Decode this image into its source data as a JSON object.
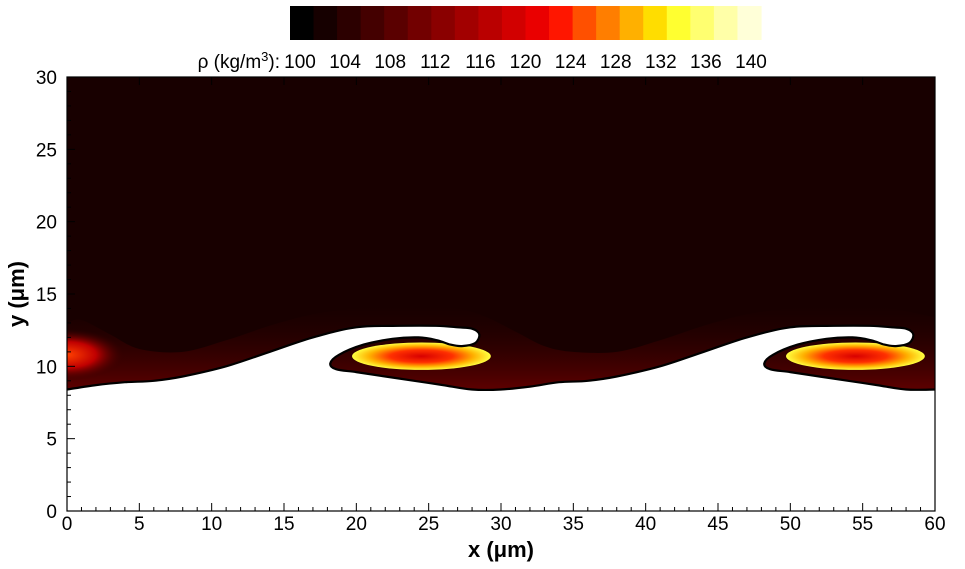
{
  "chart_data": {
    "type": "heatmap",
    "title": "",
    "xlabel": "x (μm)",
    "ylabel": "y (μm)",
    "xlim": [
      0,
      60
    ],
    "ylim": [
      0,
      30
    ],
    "x_ticks": [
      0,
      5,
      10,
      15,
      20,
      25,
      30,
      35,
      40,
      45,
      50,
      55,
      60
    ],
    "y_ticks": [
      0,
      5,
      10,
      15,
      20,
      25,
      30
    ],
    "grid": false,
    "colorbar": {
      "label_prefix": "ρ (kg/m",
      "label_sup": "3",
      "label_suffix": "):",
      "placement": "top",
      "range": [
        100,
        140
      ],
      "labels": [
        100,
        104,
        108,
        112,
        116,
        120,
        124,
        128,
        132,
        136,
        140
      ],
      "colors": [
        "#000000",
        "#160000",
        "#2c0000",
        "#440000",
        "#5a0000",
        "#720000",
        "#8a0000",
        "#a20000",
        "#ba0000",
        "#d20000",
        "#ea0000",
        "#ff1600",
        "#ff5000",
        "#ff7e00",
        "#ffb000",
        "#ffdd00",
        "#ffff30",
        "#ffff70",
        "#ffffa8",
        "#ffffd8"
      ]
    },
    "background_field_color": "#180000",
    "interface_curve": [
      [
        0,
        8.4
      ],
      [
        2,
        8.7
      ],
      [
        4,
        8.9
      ],
      [
        6,
        9.0
      ],
      [
        8,
        9.3
      ],
      [
        11,
        10.0
      ],
      [
        14,
        11.0
      ],
      [
        17,
        12.0
      ],
      [
        20,
        12.7
      ],
      [
        23,
        12.8
      ],
      [
        25.5,
        12.8
      ],
      [
        27,
        12.7
      ],
      [
        28,
        12.6
      ],
      [
        28.5,
        12.2
      ],
      [
        28.2,
        11.6
      ],
      [
        27.3,
        11.4
      ],
      [
        26.5,
        11.5
      ],
      [
        25.6,
        11.8
      ],
      [
        24.3,
        12.0
      ],
      [
        22.5,
        11.9
      ],
      [
        20.5,
        11.5
      ],
      [
        18.8,
        10.8
      ],
      [
        18.2,
        10.2
      ],
      [
        18.6,
        9.8
      ],
      [
        20,
        9.6
      ],
      [
        22,
        9.3
      ],
      [
        24,
        9.0
      ],
      [
        26,
        8.7
      ],
      [
        28,
        8.4
      ],
      [
        30,
        8.4
      ],
      [
        32,
        8.6
      ],
      [
        34,
        8.9
      ],
      [
        36,
        9.0
      ],
      [
        38,
        9.3
      ],
      [
        41,
        10.0
      ],
      [
        44,
        11.0
      ],
      [
        47,
        12.0
      ],
      [
        50,
        12.7
      ],
      [
        53,
        12.8
      ],
      [
        55.5,
        12.8
      ],
      [
        57,
        12.7
      ],
      [
        58,
        12.6
      ],
      [
        58.5,
        12.2
      ],
      [
        58.2,
        11.6
      ],
      [
        57.3,
        11.4
      ],
      [
        56.5,
        11.5
      ],
      [
        55.6,
        11.8
      ],
      [
        54.3,
        12.0
      ],
      [
        52.5,
        11.9
      ],
      [
        50.5,
        11.5
      ],
      [
        48.8,
        10.8
      ],
      [
        48.2,
        10.2
      ],
      [
        48.6,
        9.8
      ],
      [
        50,
        9.6
      ],
      [
        52,
        9.3
      ],
      [
        54,
        9.0
      ],
      [
        56,
        8.7
      ],
      [
        58,
        8.4
      ],
      [
        60,
        8.4
      ]
    ],
    "mixing_layer_profile": [
      [
        0,
        13.0
      ],
      [
        1,
        13.2
      ],
      [
        3,
        12.2
      ],
      [
        5,
        11.2
      ],
      [
        8,
        11.0
      ],
      [
        11,
        11.8
      ],
      [
        14,
        12.8
      ],
      [
        17,
        13.6
      ],
      [
        20,
        14.0
      ],
      [
        24,
        14.2
      ],
      [
        27,
        14.0
      ],
      [
        29,
        13.4
      ],
      [
        31,
        12.4
      ],
      [
        33,
        11.4
      ],
      [
        35,
        11.0
      ],
      [
        38,
        11.0
      ],
      [
        41,
        11.8
      ],
      [
        44,
        12.8
      ],
      [
        47,
        13.6
      ],
      [
        50,
        14.0
      ],
      [
        54,
        14.2
      ],
      [
        57,
        14.0
      ],
      [
        59,
        13.6
      ],
      [
        60,
        13.4
      ]
    ],
    "vortex_cores": [
      {
        "x": 24.5,
        "y": 10.7,
        "rx": 4.8,
        "ry": 0.95
      },
      {
        "x": 54.5,
        "y": 10.7,
        "rx": 4.8,
        "ry": 0.95
      }
    ],
    "left_edge_glow": {
      "x": 0,
      "y": 10.8
    }
  }
}
